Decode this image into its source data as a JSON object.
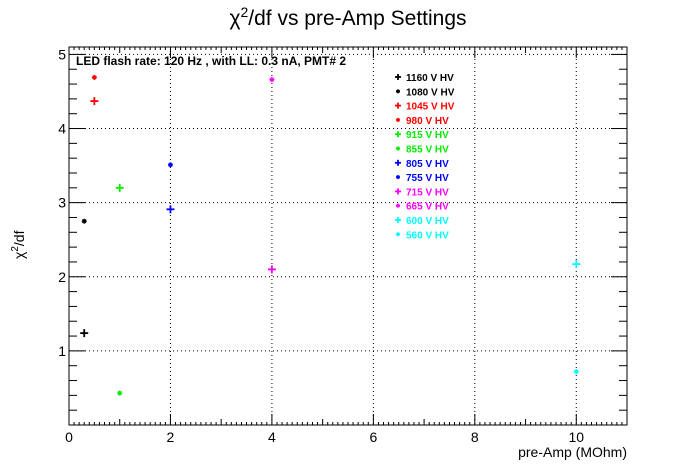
{
  "chart_data": {
    "type": "scatter",
    "title_prefix": "χ",
    "title_sup": "2",
    "title_suffix": "/df vs pre-Amp Settings",
    "ylabel_prefix": "χ",
    "ylabel_sup": "2",
    "ylabel_suffix": "/df",
    "xlabel": "pre-Amp (MOhm)",
    "annotation": "LED flash rate: 120 Hz , with LL: 0.3 nA, PMT# 2",
    "xlim": [
      0,
      11
    ],
    "ylim": [
      0.0,
      5.1
    ],
    "x_ticks": [
      0,
      2,
      4,
      6,
      8,
      10
    ],
    "y_ticks": [
      1,
      2,
      3,
      4,
      5
    ],
    "grid": true,
    "legend_position": "top-right",
    "series": [
      {
        "name": "1160 V HV",
        "color": "#000000",
        "marker": "plus",
        "points": [
          [
            0.3,
            1.24
          ]
        ]
      },
      {
        "name": "1080 V HV",
        "color": "#000000",
        "marker": "star",
        "points": [
          [
            0.3,
            2.75
          ]
        ]
      },
      {
        "name": "1045 V HV",
        "color": "#ff0000",
        "marker": "plus",
        "points": [
          [
            0.5,
            4.37
          ]
        ]
      },
      {
        "name": "980 V HV",
        "color": "#ff0000",
        "marker": "star",
        "points": [
          [
            0.5,
            4.69
          ]
        ]
      },
      {
        "name": "915 V HV",
        "color": "#00ee00",
        "marker": "plus",
        "points": [
          [
            1,
            3.2
          ]
        ]
      },
      {
        "name": "855 V HV",
        "color": "#00ee00",
        "marker": "star",
        "points": [
          [
            1,
            0.43
          ]
        ]
      },
      {
        "name": "805 V HV",
        "color": "#0000ff",
        "marker": "plus",
        "points": [
          [
            2,
            2.91
          ]
        ]
      },
      {
        "name": "755 V HV",
        "color": "#0000ff",
        "marker": "star",
        "points": [
          [
            2,
            3.51
          ]
        ]
      },
      {
        "name": "715 V HV",
        "color": "#ff00ff",
        "marker": "plus",
        "points": [
          [
            4,
            2.1
          ]
        ]
      },
      {
        "name": "665 V HV",
        "color": "#ff00ff",
        "marker": "star",
        "points": [
          [
            4,
            4.66
          ]
        ]
      },
      {
        "name": "600 V HV",
        "color": "#00ffff",
        "marker": "plus",
        "points": [
          [
            10,
            2.17
          ]
        ]
      },
      {
        "name": "560 V HV",
        "color": "#00ffff",
        "marker": "star",
        "points": [
          [
            10,
            0.72
          ]
        ]
      }
    ]
  }
}
